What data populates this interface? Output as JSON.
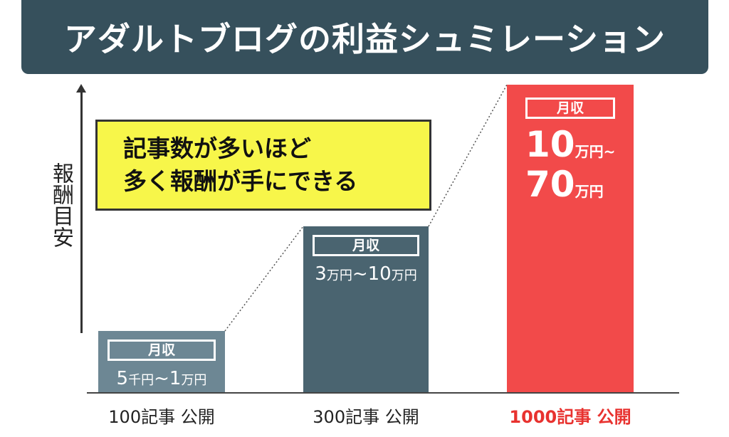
{
  "title": "アダルトブログの利益シュミレーション",
  "axis_label": "報酬目安",
  "callout": {
    "line1": "記事数が多いほど",
    "line2": "多く報酬が手にできる"
  },
  "chart_data": {
    "type": "bar",
    "title": "アダルトブログの利益シュミレーション",
    "ylabel": "報酬目安",
    "categories": [
      "100記事 公開",
      "300記事 公開",
      "1000記事 公開"
    ],
    "values": [
      1,
      2.7,
      5
    ],
    "bars": [
      {
        "badge": "月収",
        "value_parts": [
          [
            "5",
            "num"
          ],
          [
            "千円",
            "unit"
          ],
          [
            "~",
            "num"
          ],
          [
            "1",
            "num"
          ],
          [
            "万円",
            "unit"
          ]
        ],
        "value_text": "5千円~1万円"
      },
      {
        "badge": "月収",
        "value_parts": [
          [
            "3",
            "num"
          ],
          [
            "万円",
            "unit"
          ],
          [
            "~",
            "num"
          ],
          [
            "10",
            "num"
          ],
          [
            "万円",
            "unit"
          ]
        ],
        "value_text": "3万円~10万円"
      },
      {
        "badge": "月収",
        "value_lines": [
          [
            [
              "10",
              "num"
            ],
            [
              "万円~",
              "unit"
            ]
          ],
          [
            [
              "70",
              "num"
            ],
            [
              "万円",
              "unit"
            ]
          ]
        ],
        "value_text": "10万円~70万円"
      }
    ],
    "colors": [
      "#6d8794",
      "#4a6470",
      "#f24a4a"
    ],
    "label_colors": [
      "#222222",
      "#222222",
      "#e8322f"
    ],
    "legend": "none",
    "grid": false
  }
}
